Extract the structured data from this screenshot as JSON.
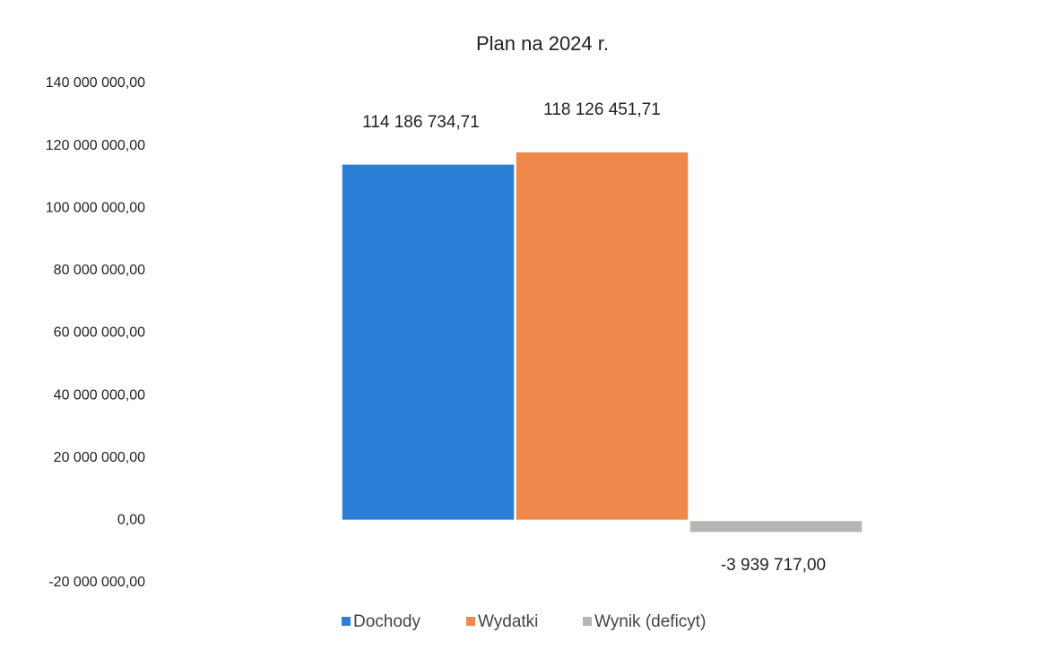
{
  "chart_data": {
    "type": "bar",
    "title": "Plan na 2024 r.",
    "categories": [
      null
    ],
    "series": [
      {
        "name": "Dochody",
        "color": "#2b7fd6",
        "values": [
          114186734.71
        ],
        "value_labels": [
          "114 186 734,71"
        ]
      },
      {
        "name": "Wydatki",
        "color": "#f0884c",
        "values": [
          118126451.71
        ],
        "value_labels": [
          "118 126 451,71"
        ]
      },
      {
        "name": "Wynik (deficyt)",
        "color": "#b5b5b5",
        "values": [
          -3939717.0
        ],
        "value_labels": [
          "-3 939 717,00"
        ]
      }
    ],
    "ylim": [
      -20000000,
      140000000
    ],
    "yticks": [
      {
        "value": -20000000,
        "label": "-20 000 000,00"
      },
      {
        "value": 0,
        "label": "0,00"
      },
      {
        "value": 20000000,
        "label": "20 000 000,00"
      },
      {
        "value": 40000000,
        "label": "40 000 000,00"
      },
      {
        "value": 60000000,
        "label": "60 000 000,00"
      },
      {
        "value": 80000000,
        "label": "80 000 000,00"
      },
      {
        "value": 100000000,
        "label": "100 000 000,00"
      },
      {
        "value": 120000000,
        "label": "120 000 000,00"
      },
      {
        "value": 140000000,
        "label": "140 000 000,00"
      }
    ],
    "grid": false,
    "legend": "bottom"
  }
}
